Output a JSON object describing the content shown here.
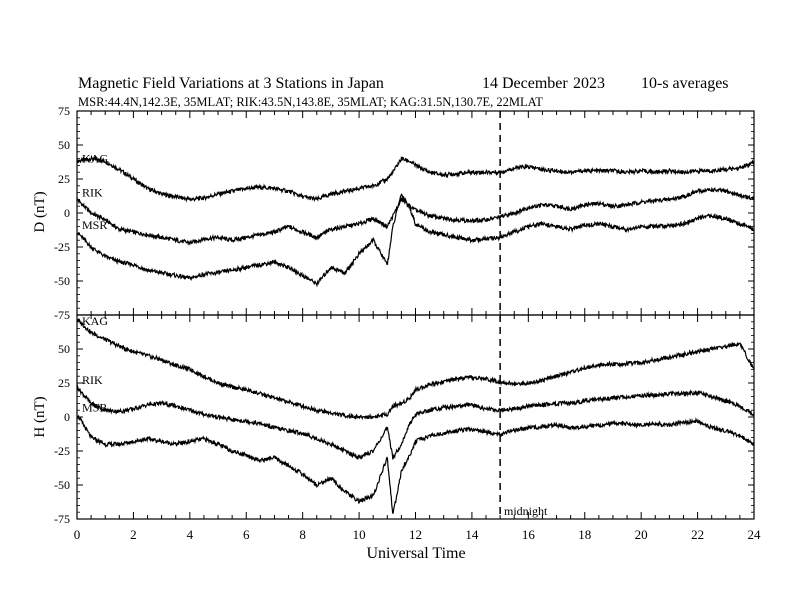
{
  "chart_data": [
    {
      "type": "line",
      "panel": "D",
      "title": "Magnetic Field Variations at 3 Stations in Japan",
      "date": "14 December",
      "year": "2023",
      "averaging": "10-s averages",
      "subtitle": "MSR:44.4N,142.3E, 35MLAT;  RIK:43.5N,143.8E, 35MLAT;  KAG:31.5N,130.7E, 22MLAT",
      "xlabel": "Universal Time",
      "ylabel": "D (nT)",
      "xlim": [
        0,
        24
      ],
      "ylim": [
        -75,
        75
      ],
      "x_ticks": [
        0,
        2,
        4,
        6,
        8,
        10,
        12,
        14,
        16,
        18,
        20,
        22,
        24
      ],
      "y_ticks": [
        75,
        50,
        25,
        0,
        -25,
        -50,
        -75
      ],
      "y_tick_labels": [
        "75",
        "50",
        "25",
        "0",
        "-25",
        "-50",
        "-75"
      ],
      "grid": false,
      "series": [
        {
          "name": "KAG",
          "x": [
            0,
            0.5,
            1,
            1.5,
            2,
            2.5,
            3,
            3.5,
            4,
            4.5,
            5,
            5.5,
            6,
            6.5,
            7,
            7.5,
            8,
            8.5,
            9,
            9.5,
            10,
            10.5,
            11,
            11.2,
            11.5,
            11.8,
            12,
            12.5,
            13,
            13.5,
            14,
            14.5,
            15,
            15.5,
            16,
            16.5,
            17,
            17.5,
            18,
            18.5,
            19,
            19.5,
            20,
            20.5,
            21,
            21.5,
            22,
            22.5,
            23,
            23.5,
            24
          ],
          "values": [
            38,
            40,
            38,
            32,
            25,
            18,
            14,
            12,
            10,
            11,
            14,
            16,
            18,
            19,
            18,
            16,
            12,
            10,
            14,
            16,
            18,
            20,
            25,
            30,
            40,
            38,
            35,
            30,
            28,
            29,
            30,
            30,
            30,
            33,
            34,
            32,
            31,
            30,
            31,
            31,
            31,
            30,
            31,
            30,
            31,
            30,
            31,
            31,
            32,
            33,
            37
          ]
        },
        {
          "name": "RIK",
          "x": [
            0,
            0.5,
            1,
            1.5,
            2,
            2.5,
            3,
            3.5,
            4,
            4.5,
            5,
            5.5,
            6,
            6.5,
            7,
            7.5,
            8,
            8.5,
            9,
            9.5,
            10,
            10.5,
            11,
            11.2,
            11.5,
            11.8,
            12,
            12.5,
            13,
            13.5,
            14,
            14.5,
            15,
            15.5,
            16,
            16.5,
            17,
            17.5,
            18,
            18.5,
            19,
            19.5,
            20,
            20.5,
            21,
            21.5,
            22,
            22.5,
            23,
            23.5,
            24
          ],
          "values": [
            10,
            0,
            -5,
            -12,
            -14,
            -16,
            -18,
            -20,
            -22,
            -19,
            -18,
            -20,
            -18,
            -16,
            -14,
            -10,
            -14,
            -18,
            -12,
            -10,
            -8,
            -4,
            -10,
            -2,
            10,
            5,
            2,
            -2,
            -4,
            -5,
            -6,
            -5,
            -3,
            0,
            4,
            6,
            5,
            3,
            6,
            7,
            5,
            6,
            8,
            9,
            10,
            12,
            16,
            17,
            16,
            13,
            10
          ]
        },
        {
          "name": "MSR",
          "x": [
            0,
            0.5,
            1,
            1.5,
            2,
            2.5,
            3,
            3.5,
            4,
            4.5,
            5,
            5.5,
            6,
            6.5,
            7,
            7.5,
            8,
            8.5,
            9,
            9.5,
            10,
            10.5,
            11,
            11.2,
            11.5,
            11.8,
            12,
            12.5,
            13,
            13.5,
            14,
            14.5,
            15,
            15.5,
            16,
            16.5,
            17,
            17.5,
            18,
            18.5,
            19,
            19.5,
            20,
            20.5,
            21,
            21.5,
            22,
            22.5,
            23,
            23.5,
            24
          ],
          "values": [
            -14,
            -25,
            -32,
            -36,
            -38,
            -42,
            -44,
            -46,
            -48,
            -45,
            -44,
            -42,
            -40,
            -38,
            -36,
            -40,
            -46,
            -52,
            -40,
            -44,
            -30,
            -20,
            -38,
            -10,
            14,
            4,
            -8,
            -14,
            -16,
            -18,
            -20,
            -19,
            -18,
            -14,
            -10,
            -8,
            -10,
            -12,
            -9,
            -8,
            -10,
            -12,
            -10,
            -10,
            -9,
            -8,
            -4,
            -2,
            -4,
            -8,
            -12
          ]
        }
      ]
    },
    {
      "type": "line",
      "panel": "H",
      "xlabel": "Universal Time",
      "ylabel": "H (nT)",
      "xlim": [
        0,
        24
      ],
      "ylim": [
        -75,
        75
      ],
      "x_ticks": [
        0,
        2,
        4,
        6,
        8,
        10,
        12,
        14,
        16,
        18,
        20,
        22,
        24
      ],
      "x_tick_labels": [
        "0",
        "2",
        "4",
        "6",
        "8",
        "10",
        "12",
        "14",
        "16",
        "18",
        "20",
        "22",
        "24"
      ],
      "y_ticks": [
        50,
        25,
        0,
        -25,
        -50,
        -75
      ],
      "y_tick_labels": [
        "50",
        "25",
        "0",
        "-25",
        "-50",
        "-75"
      ],
      "grid": false,
      "series": [
        {
          "name": "KAG",
          "x": [
            0,
            0.5,
            1,
            1.5,
            2,
            2.5,
            3,
            3.5,
            4,
            4.5,
            5,
            5.5,
            6,
            6.5,
            7,
            7.5,
            8,
            8.5,
            9,
            9.5,
            10,
            10.5,
            11,
            11.2,
            11.5,
            11.8,
            12,
            12.5,
            13,
            13.5,
            14,
            14.5,
            15,
            15.5,
            16,
            16.5,
            17,
            17.5,
            18,
            18.5,
            19,
            19.5,
            20,
            20.5,
            21,
            21.5,
            22,
            22.5,
            23,
            23.5,
            24
          ],
          "values": [
            72,
            62,
            57,
            52,
            48,
            45,
            42,
            38,
            35,
            30,
            25,
            22,
            20,
            17,
            14,
            11,
            8,
            5,
            3,
            1,
            0,
            0,
            2,
            8,
            10,
            14,
            20,
            24,
            26,
            28,
            29,
            28,
            26,
            24,
            25,
            27,
            30,
            33,
            36,
            38,
            39,
            39,
            40,
            42,
            44,
            46,
            48,
            50,
            52,
            54,
            35
          ]
        },
        {
          "name": "RIK",
          "x": [
            0,
            0.5,
            1,
            1.5,
            2,
            2.5,
            3,
            3.5,
            4,
            4.5,
            5,
            5.5,
            6,
            6.5,
            7,
            7.5,
            8,
            8.5,
            9,
            9.5,
            10,
            10.5,
            11,
            11.2,
            11.5,
            11.8,
            12,
            12.5,
            13,
            13.5,
            14,
            14.5,
            15,
            15.5,
            16,
            16.5,
            17,
            17.5,
            18,
            18.5,
            19,
            19.5,
            20,
            20.5,
            21,
            21.5,
            22,
            22.5,
            23,
            23.5,
            24
          ],
          "values": [
            22,
            10,
            5,
            4,
            6,
            9,
            10,
            8,
            5,
            2,
            0,
            -2,
            -3,
            -5,
            -8,
            -10,
            -12,
            -16,
            -20,
            -25,
            -30,
            -25,
            -8,
            -30,
            -20,
            -5,
            2,
            5,
            7,
            8,
            9,
            6,
            5,
            6,
            8,
            9,
            10,
            10,
            12,
            13,
            14,
            15,
            16,
            16,
            17,
            17,
            18,
            15,
            12,
            8,
            2
          ]
        },
        {
          "name": "MSR",
          "x": [
            0,
            0.5,
            1,
            1.5,
            2,
            2.5,
            3,
            3.5,
            4,
            4.5,
            5,
            5.5,
            6,
            6.5,
            7,
            7.5,
            8,
            8.5,
            9,
            9.5,
            10,
            10.5,
            11,
            11.2,
            11.5,
            11.8,
            12,
            12.5,
            13,
            13.5,
            14,
            14.5,
            15,
            15.5,
            16,
            16.5,
            17,
            17.5,
            18,
            18.5,
            19,
            19.5,
            20,
            20.5,
            21,
            21.5,
            22,
            22.5,
            23,
            23.5,
            24
          ],
          "values": [
            2,
            -15,
            -20,
            -20,
            -18,
            -16,
            -18,
            -20,
            -18,
            -16,
            -20,
            -25,
            -28,
            -32,
            -30,
            -36,
            -42,
            -50,
            -45,
            -55,
            -62,
            -58,
            -30,
            -72,
            -40,
            -28,
            -18,
            -14,
            -12,
            -10,
            -9,
            -11,
            -13,
            -10,
            -8,
            -7,
            -6,
            -8,
            -7,
            -6,
            -5,
            -5,
            -6,
            -5,
            -6,
            -4,
            -3,
            -8,
            -10,
            -14,
            -20
          ]
        }
      ]
    }
  ],
  "annotations": {
    "midnight_label": "midnight",
    "midnight_ut": 15
  },
  "style": {
    "line_color": "#000000",
    "background": "#ffffff"
  }
}
